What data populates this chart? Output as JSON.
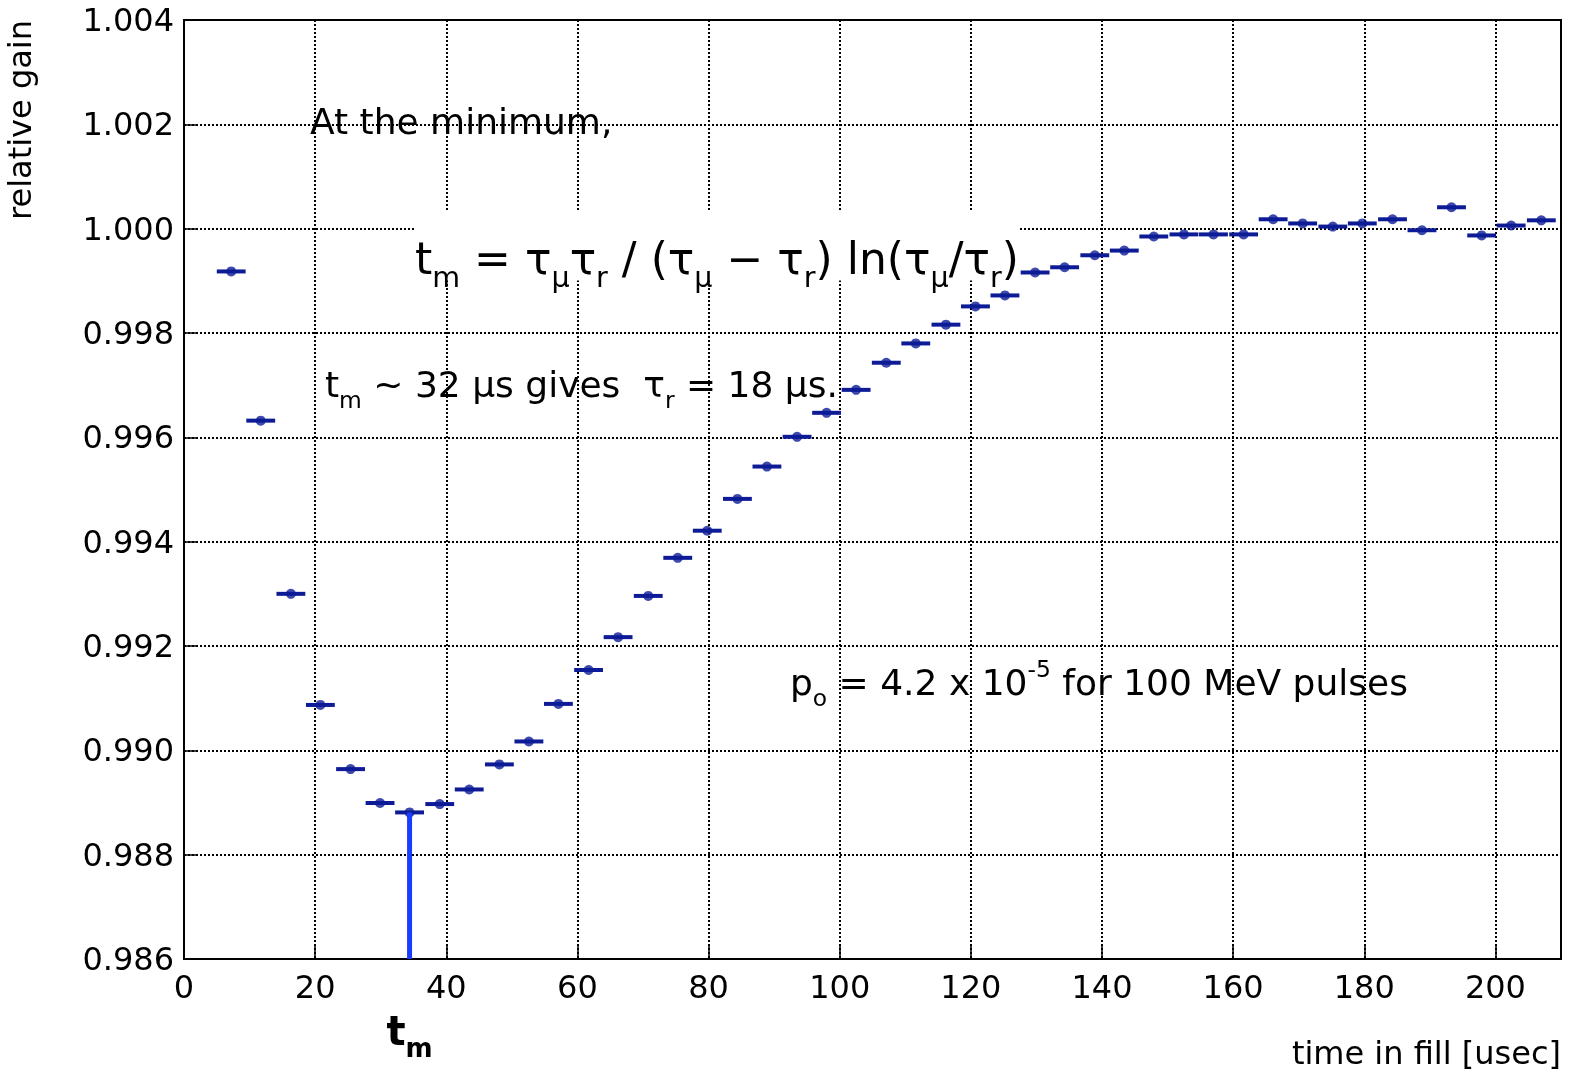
{
  "chart_data": {
    "type": "scatter",
    "xlabel": "time in fill [usec]",
    "ylabel": "relative gain",
    "x": [
      7.2,
      11.7,
      16.3,
      20.8,
      25.4,
      29.9,
      34.4,
      39.0,
      43.5,
      48.1,
      52.6,
      57.1,
      61.7,
      66.2,
      70.8,
      75.3,
      79.8,
      84.4,
      88.9,
      93.5,
      98.0,
      102.5,
      107.1,
      111.6,
      116.2,
      120.7,
      125.2,
      129.8,
      134.3,
      138.9,
      143.4,
      147.9,
      152.5,
      157.0,
      161.6,
      166.1,
      170.6,
      175.2,
      179.7,
      184.3,
      188.8,
      193.3,
      197.9,
      202.4,
      207.0
    ],
    "series": [
      {
        "color": "#0d1b96",
        "values": [
          0.99918,
          0.99632,
          0.993,
          0.99087,
          0.98964,
          0.98899,
          0.98881,
          0.98897,
          0.98925,
          0.98973,
          0.99017,
          0.99089,
          0.99154,
          0.99217,
          0.99296,
          0.99369,
          0.99421,
          0.99482,
          0.99544,
          0.99601,
          0.99647,
          0.99691,
          0.99743,
          0.9978,
          0.99816,
          0.99851,
          0.99872,
          0.99916,
          0.99926,
          0.99949,
          0.99958,
          0.99985,
          0.99989,
          0.99989,
          0.99989,
          1.00018,
          1.0001,
          1.00004,
          1.0001,
          1.00018,
          0.99997,
          1.00041,
          0.99987,
          1.00006,
          1.00016
        ],
        "xerrors": [
          2.2,
          2.2,
          2.2,
          2.2,
          2.2,
          2.2,
          2.2,
          2.2,
          2.2,
          2.2,
          2.2,
          2.2,
          2.2,
          2.2,
          2.2,
          2.2,
          2.2,
          2.2,
          2.2,
          2.2,
          2.2,
          2.2,
          2.2,
          2.2,
          2.2,
          2.2,
          2.2,
          2.2,
          2.2,
          2.2,
          2.2,
          2.2,
          2.2,
          2.2,
          2.2,
          2.2,
          2.2,
          2.2,
          2.2,
          2.2,
          2.2,
          2.2,
          2.2,
          2.2,
          2.2
        ]
      }
    ],
    "xlim": [
      0,
      210
    ],
    "xticks": [
      0,
      20,
      40,
      60,
      80,
      100,
      120,
      140,
      160,
      180,
      200
    ],
    "ylim": [
      0.986,
      1.004
    ],
    "yticks": [
      {
        "value": 0.986,
        "label": "0.986"
      },
      {
        "value": 0.988,
        "label": "0.988"
      },
      {
        "value": 0.99,
        "label": "0.990"
      },
      {
        "value": 0.992,
        "label": "0.992"
      },
      {
        "value": 0.994,
        "label": "0.994"
      },
      {
        "value": 0.996,
        "label": "0.996"
      },
      {
        "value": 0.998,
        "label": "0.998"
      },
      {
        "value": 1.0,
        "label": "1.000"
      },
      {
        "value": 1.002,
        "label": "1.002"
      },
      {
        "value": 1.004,
        "label": "1.004"
      }
    ],
    "grid": true,
    "marker": "circle",
    "annotations": [
      "At the minimum,",
      "t$_{m}$ = τ$_{μ}$τ$_{r}$ / (τ$_{μ}$ − τ$_{r}$) ln(τ$_{μ}$/τ$_{r}$)",
      "t$_{m}$ ~ 32 μs gives  τ$_{r}$ = 18 μs.",
      "p$_{o}$ = 4.2 x 10$^{-5}$ for 100 MeV pulses",
      {
        "text": "t$_{m}$",
        "x": 34.4,
        "y": 0.98881
      }
    ]
  }
}
